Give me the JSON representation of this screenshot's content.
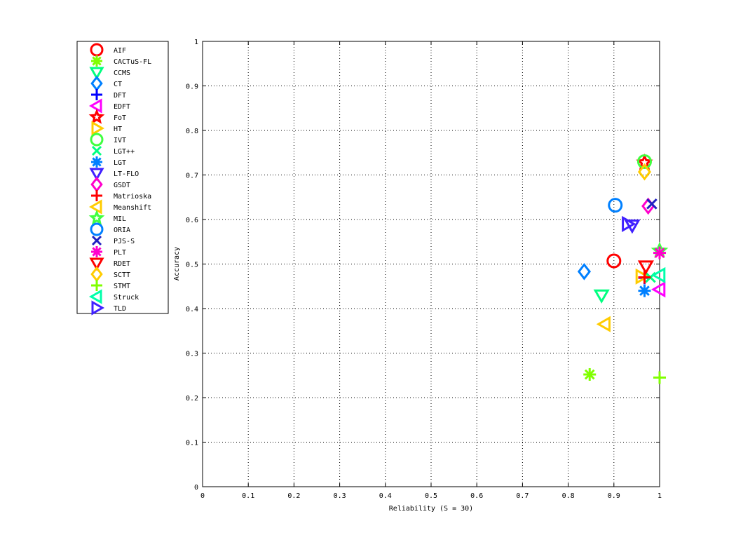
{
  "chart_data": {
    "type": "scatter",
    "title": "",
    "xlabel": "Reliability (S = 30)",
    "ylabel": "Accuracy",
    "xlim": [
      0,
      1
    ],
    "ylim": [
      0,
      1
    ],
    "xticks": [
      "0",
      "0.1",
      "0.2",
      "0.3",
      "0.4",
      "0.5",
      "0.6",
      "0.7",
      "0.8",
      "0.9",
      "1"
    ],
    "yticks": [
      "0",
      "0.1",
      "0.2",
      "0.3",
      "0.4",
      "0.5",
      "0.6",
      "0.7",
      "0.8",
      "0.9",
      "1"
    ],
    "grid": true,
    "legend_position": "outside-left",
    "series": [
      {
        "name": "AIF",
        "marker": "circle",
        "color": "#ff0000",
        "x": 0.9,
        "y": 0.507
      },
      {
        "name": "CACTuS-FL",
        "marker": "asterisk",
        "color": "#80ff00",
        "x": 0.847,
        "y": 0.252
      },
      {
        "name": "CCMS",
        "marker": "triangle-down",
        "color": "#00ff80",
        "x": 0.873,
        "y": 0.43
      },
      {
        "name": "CT",
        "marker": "diamond",
        "color": "#0080ff",
        "x": 0.835,
        "y": 0.483
      },
      {
        "name": "DFT",
        "marker": "plus",
        "color": "#0000ff",
        "x": 0.967,
        "y": 0.469
      },
      {
        "name": "EDFT",
        "marker": "triangle-left",
        "color": "#ff00ff",
        "x": 1.0,
        "y": 0.443
      },
      {
        "name": "FoT",
        "marker": "star",
        "color": "#ff0000",
        "x": 0.967,
        "y": 0.728
      },
      {
        "name": "HT",
        "marker": "triangle-right",
        "color": "#ffcc00",
        "x": 0.96,
        "y": 0.472
      },
      {
        "name": "IVT",
        "marker": "circle",
        "color": "#40ff40",
        "x": 0.967,
        "y": 0.73
      },
      {
        "name": "LGT++",
        "marker": "cross",
        "color": "#00ff80",
        "x": 0.98,
        "y": 0.47
      },
      {
        "name": "LGT",
        "marker": "asterisk",
        "color": "#0080ff",
        "x": 0.967,
        "y": 0.44
      },
      {
        "name": "LT-FLO",
        "marker": "triangle-down",
        "color": "#4020ff",
        "x": 0.94,
        "y": 0.587
      },
      {
        "name": "GSDT",
        "marker": "diamond",
        "color": "#ff00cc",
        "x": 0.975,
        "y": 0.63
      },
      {
        "name": "Matrioska",
        "marker": "plus",
        "color": "#ff0000",
        "x": 0.967,
        "y": 0.47
      },
      {
        "name": "Meanshift",
        "marker": "triangle-left",
        "color": "#ffcc00",
        "x": 0.88,
        "y": 0.365
      },
      {
        "name": "MIL",
        "marker": "star",
        "color": "#40ff40",
        "x": 1.0,
        "y": 0.53
      },
      {
        "name": "ORIA",
        "marker": "circle",
        "color": "#0080ff",
        "x": 0.903,
        "y": 0.632
      },
      {
        "name": "PJS-S",
        "marker": "cross",
        "color": "#2020c0",
        "x": 0.983,
        "y": 0.635
      },
      {
        "name": "PLT",
        "marker": "asterisk",
        "color": "#ff00cc",
        "x": 1.0,
        "y": 0.525
      },
      {
        "name": "RDET",
        "marker": "triangle-down",
        "color": "#ff0000",
        "x": 0.97,
        "y": 0.495
      },
      {
        "name": "SCTT",
        "marker": "diamond",
        "color": "#ffcc00",
        "x": 0.967,
        "y": 0.707
      },
      {
        "name": "STMT",
        "marker": "plus",
        "color": "#80ff00",
        "x": 1.0,
        "y": 0.245
      },
      {
        "name": "Struck",
        "marker": "triangle-left",
        "color": "#00ffaa",
        "x": 1.0,
        "y": 0.475
      },
      {
        "name": "TLD",
        "marker": "triangle-right",
        "color": "#4020ff",
        "x": 0.93,
        "y": 0.59
      }
    ]
  }
}
